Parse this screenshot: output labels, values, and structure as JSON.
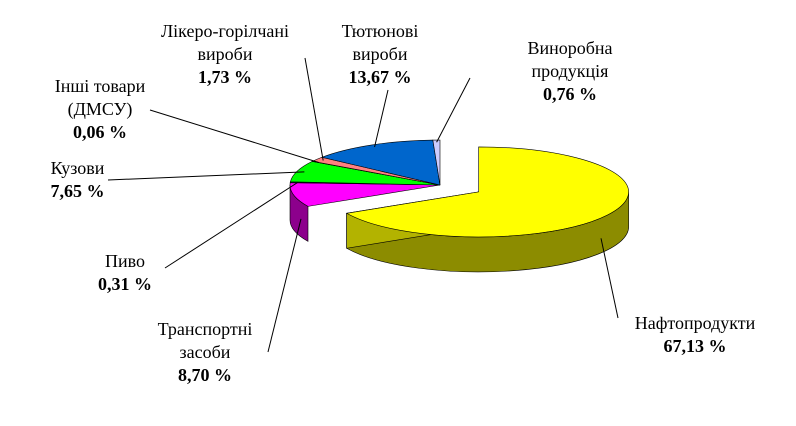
{
  "chart_data": {
    "type": "pie3d",
    "categories": [
      "Нафтопродукти",
      "Транспортні засоби",
      "Пиво",
      "Кузови",
      "Інші товари (ДМСУ)",
      "Лікеро-горілчані вироби",
      "Тютюнові вироби",
      "Виноробна продукція"
    ],
    "values": [
      67.13,
      8.7,
      0.31,
      7.65,
      0.06,
      1.73,
      13.67,
      0.76
    ],
    "value_labels": [
      "67,13 %",
      "8,70 %",
      "0,31 %",
      "7,65 %",
      "0,06 %",
      "1,73 %",
      "13,67 %",
      "0,76 %"
    ],
    "colors": [
      "#ffff00",
      "#ff00ff",
      "#333399",
      "#00ff00",
      "#003366",
      "#ff8080",
      "#0066cc",
      "#ccccff"
    ]
  }
}
